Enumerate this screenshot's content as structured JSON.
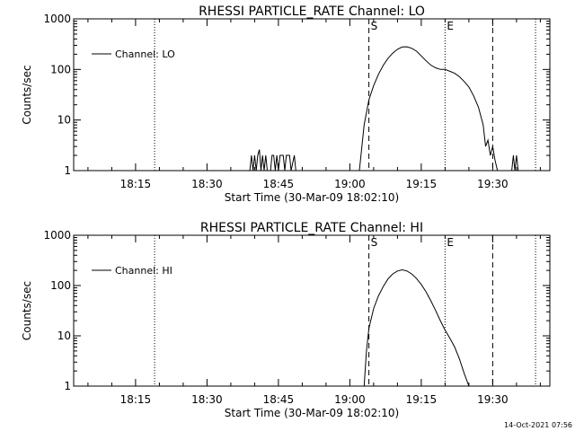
{
  "footer": {
    "timestamp": "14-Oct-2021 07:56"
  },
  "chart_data": [
    {
      "type": "line",
      "title": "RHESSI PARTICLE_RATE Channel: LO",
      "xlabel": "Start Time (30-Mar-09 18:02:10)",
      "ylabel": "Counts/sec",
      "yscale": "log",
      "ylim": [
        1,
        1000
      ],
      "xlim": [
        "18:02",
        "19:42"
      ],
      "x_ticks": [
        "18:15",
        "18:30",
        "18:45",
        "19:00",
        "19:15",
        "19:30"
      ],
      "y_ticks": [
        "1",
        "10",
        "100",
        "1000"
      ],
      "legend": {
        "position": "top-left",
        "entries": [
          "Channel: LO"
        ]
      },
      "markers": {
        "dotted": [
          "18:19",
          "19:20",
          "19:39"
        ],
        "dashed": [
          "19:04",
          "19:30"
        ],
        "labels": [
          {
            "text": "S",
            "x": "19:04"
          },
          {
            "text": "E",
            "x": "19:20"
          }
        ]
      },
      "series": [
        {
          "name": "Channel: LO",
          "points": [
            [
              "18:39:00",
              1
            ],
            [
              "18:39:20",
              2
            ],
            [
              "18:39:40",
              1
            ],
            [
              "18:40:00",
              2
            ],
            [
              "18:40:20",
              1
            ],
            [
              "18:40:40",
              2
            ],
            [
              "18:41:00",
              2.6
            ],
            [
              "18:41:20",
              1
            ],
            [
              "18:41:40",
              2
            ],
            [
              "18:42:00",
              1
            ],
            [
              "18:42:20",
              2
            ],
            [
              "18:42:40",
              1
            ],
            [
              "18:43:20",
              1
            ],
            [
              "18:43:40",
              2
            ],
            [
              "18:44:00",
              2
            ],
            [
              "18:44:20",
              1
            ],
            [
              "18:44:40",
              2
            ],
            [
              "18:45:00",
              1
            ],
            [
              "18:45:20",
              2
            ],
            [
              "18:45:40",
              2
            ],
            [
              "18:46:00",
              2
            ],
            [
              "18:46:20",
              1
            ],
            [
              "18:46:40",
              2
            ],
            [
              "18:47:00",
              2
            ],
            [
              "18:47:20",
              2
            ],
            [
              "18:47:40",
              1
            ],
            [
              "18:48:20",
              2
            ],
            [
              "18:48:40",
              1
            ],
            [
              "19:02:00",
              1
            ],
            [
              "19:03:00",
              8
            ],
            [
              "19:04:00",
              25
            ],
            [
              "19:05:00",
              48
            ],
            [
              "19:06:00",
              80
            ],
            [
              "19:07:00",
              120
            ],
            [
              "19:08:00",
              165
            ],
            [
              "19:09:00",
              210
            ],
            [
              "19:10:00",
              250
            ],
            [
              "19:11:00",
              278
            ],
            [
              "19:12:00",
              280
            ],
            [
              "19:13:00",
              262
            ],
            [
              "19:14:00",
              230
            ],
            [
              "19:15:00",
              185
            ],
            [
              "19:16:00",
              148
            ],
            [
              "19:17:00",
              122
            ],
            [
              "19:18:00",
              108
            ],
            [
              "19:19:00",
              100
            ],
            [
              "19:20:00",
              100
            ],
            [
              "19:21:00",
              92
            ],
            [
              "19:22:00",
              84
            ],
            [
              "19:23:00",
              72
            ],
            [
              "19:24:00",
              58
            ],
            [
              "19:25:00",
              45
            ],
            [
              "19:26:00",
              30
            ],
            [
              "19:27:00",
              18
            ],
            [
              "19:28:00",
              8
            ],
            [
              "19:28:30",
              3
            ],
            [
              "19:29:00",
              4
            ],
            [
              "19:29:30",
              2
            ],
            [
              "19:30:00",
              3
            ],
            [
              "19:30:30",
              1.6
            ],
            [
              "19:31:00",
              1
            ],
            [
              "19:34:00",
              1
            ],
            [
              "19:34:20",
              2
            ],
            [
              "19:34:40",
              1
            ],
            [
              "19:35:00",
              2
            ],
            [
              "19:35:20",
              1
            ]
          ]
        }
      ]
    },
    {
      "type": "line",
      "title": "RHESSI PARTICLE_RATE Channel: HI",
      "xlabel": "Start Time (30-Mar-09 18:02:10)",
      "ylabel": "Counts/sec",
      "yscale": "log",
      "ylim": [
        1,
        1000
      ],
      "xlim": [
        "18:02",
        "19:42"
      ],
      "x_ticks": [
        "18:15",
        "18:30",
        "18:45",
        "19:00",
        "19:15",
        "19:30"
      ],
      "y_ticks": [
        "1",
        "10",
        "100",
        "1000"
      ],
      "legend": {
        "position": "top-left",
        "entries": [
          "Channel: HI"
        ]
      },
      "markers": {
        "dotted": [
          "18:19",
          "19:20",
          "19:39"
        ],
        "dashed": [
          "19:04",
          "19:30"
        ],
        "labels": [
          {
            "text": "S",
            "x": "19:04"
          },
          {
            "text": "E",
            "x": "19:20"
          }
        ]
      },
      "series": [
        {
          "name": "Channel: HI",
          "points": [
            [
              "19:03:00",
              1
            ],
            [
              "19:03:30",
              5
            ],
            [
              "19:04:00",
              14
            ],
            [
              "19:05:00",
              35
            ],
            [
              "19:06:00",
              62
            ],
            [
              "19:07:00",
              95
            ],
            [
              "19:08:00",
              135
            ],
            [
              "19:09:00",
              170
            ],
            [
              "19:10:00",
              195
            ],
            [
              "19:11:00",
              205
            ],
            [
              "19:12:00",
              195
            ],
            [
              "19:13:00",
              170
            ],
            [
              "19:14:00",
              138
            ],
            [
              "19:15:00",
              105
            ],
            [
              "19:16:00",
              75
            ],
            [
              "19:17:00",
              50
            ],
            [
              "19:18:00",
              32
            ],
            [
              "19:19:00",
              20
            ],
            [
              "19:20:00",
              13
            ],
            [
              "19:21:00",
              9
            ],
            [
              "19:22:00",
              6
            ],
            [
              "19:23:00",
              3.5
            ],
            [
              "19:24:00",
              1.8
            ],
            [
              "19:25:00",
              1
            ]
          ]
        }
      ]
    }
  ]
}
